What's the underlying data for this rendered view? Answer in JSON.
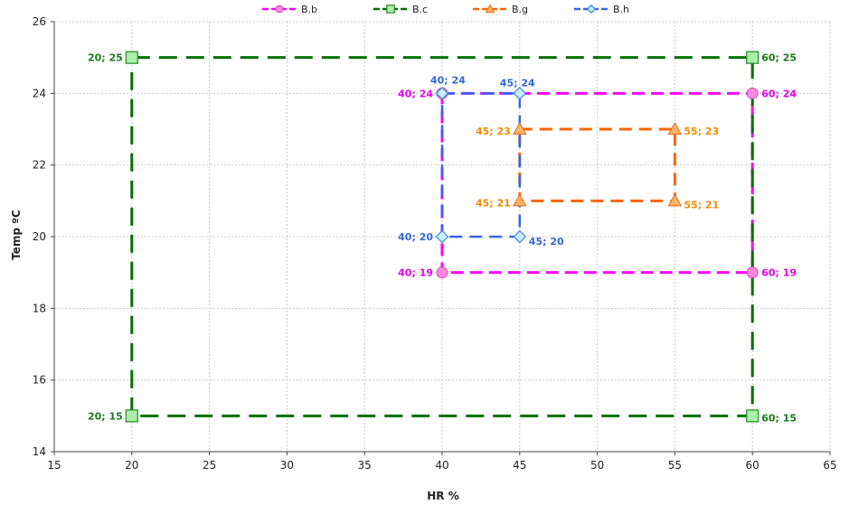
{
  "chart_data": {
    "type": "line",
    "xlabel": "HR %",
    "ylabel": "Temp ºC",
    "xlim": [
      15,
      65
    ],
    "ylim": [
      14,
      26
    ],
    "x_ticks": [
      15,
      20,
      25,
      30,
      35,
      40,
      45,
      50,
      55,
      60,
      65
    ],
    "y_ticks": [
      14,
      16,
      18,
      20,
      22,
      24,
      26
    ],
    "grid": true,
    "legend_position": "top-center",
    "series": [
      {
        "name": "B.b",
        "color": "#ff00ff",
        "label_color": "#e600e6",
        "marker": "circle",
        "marker_fill": "#ff88dd",
        "marker_stroke": "#dd44bb",
        "points": [
          [
            40,
            24
          ],
          [
            60,
            24
          ],
          [
            60,
            19
          ],
          [
            40,
            19
          ],
          [
            40,
            24
          ]
        ],
        "point_labels": [
          "40; 24",
          "60; 24",
          "60; 19",
          "40; 19"
        ]
      },
      {
        "name": "B.c",
        "color": "#007000",
        "label_color": "#1a7a1a",
        "marker": "square",
        "marker_fill": "#aaf0aa",
        "marker_stroke": "#228822",
        "points": [
          [
            20,
            25
          ],
          [
            60,
            25
          ],
          [
            60,
            15
          ],
          [
            20,
            15
          ],
          [
            20,
            25
          ]
        ],
        "point_labels": [
          "20; 25",
          "60; 25",
          "60; 15",
          "20; 15"
        ]
      },
      {
        "name": "B.g",
        "color": "#ff6600",
        "label_color": "#f08c00",
        "marker": "triangle",
        "marker_fill": "#ffb366",
        "marker_stroke": "#e07020",
        "points": [
          [
            45,
            23
          ],
          [
            55,
            23
          ],
          [
            55,
            21
          ],
          [
            45,
            21
          ],
          [
            45,
            23
          ]
        ],
        "point_labels": [
          "45; 23",
          "55; 23",
          "55; 21",
          "45; 21"
        ]
      },
      {
        "name": "B.h",
        "color": "#3366ee",
        "label_color": "#3366dd",
        "marker": "diamond",
        "marker_fill": "#c8ecff",
        "marker_stroke": "#4488cc",
        "points": [
          [
            40,
            24
          ],
          [
            45,
            24
          ],
          [
            45,
            20
          ],
          [
            40,
            20
          ],
          [
            40,
            24
          ]
        ],
        "point_labels": [
          "40; 24",
          "45; 24",
          "45; 20",
          "40; 20"
        ]
      }
    ]
  }
}
